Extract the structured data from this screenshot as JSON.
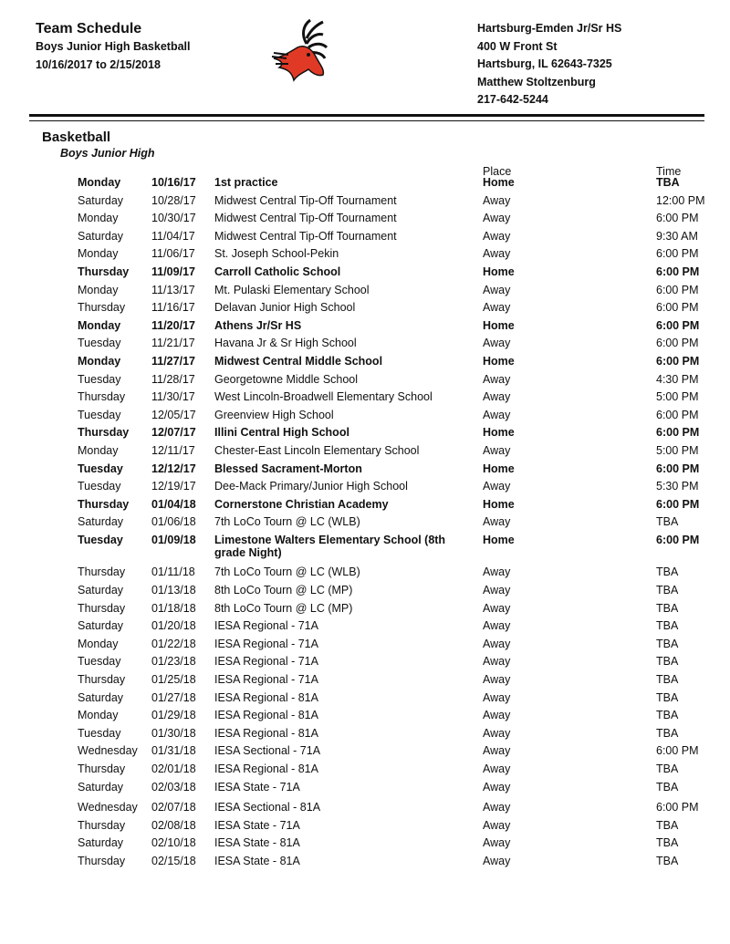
{
  "header": {
    "title": "Team Schedule",
    "subtitle": "Boys Junior High Basketball",
    "date_range": "10/16/2017 to 2/15/2018"
  },
  "school": {
    "name": "Hartsburg-Emden Jr/Sr HS",
    "address": "400 W Front St",
    "city": "Hartsburg, IL 62643-7325",
    "contact": "Matthew Stoltzenburg",
    "phone": "217-642-5244"
  },
  "logo": {
    "icon": "deer-head-mascot",
    "colors": [
      "#e03a26",
      "#111111"
    ]
  },
  "sport": "Basketball",
  "level": "Boys Junior High",
  "columns": {
    "place": "Place",
    "time": "Time"
  },
  "games": [
    {
      "day": "Monday",
      "date": "10/16/17",
      "opponent": "1st practice",
      "place": "Home",
      "time": "TBA",
      "home": true
    },
    {
      "day": "Saturday",
      "date": "10/28/17",
      "opponent": "Midwest Central Tip-Off Tournament",
      "place": "Away",
      "time": "12:00 PM"
    },
    {
      "day": "Monday",
      "date": "10/30/17",
      "opponent": "Midwest Central Tip-Off Tournament",
      "place": "Away",
      "time": "6:00 PM"
    },
    {
      "day": "Saturday",
      "date": "11/04/17",
      "opponent": "Midwest Central Tip-Off Tournament",
      "place": "Away",
      "time": "9:30 AM"
    },
    {
      "day": "Monday",
      "date": "11/06/17",
      "opponent": "St. Joseph School-Pekin",
      "place": "Away",
      "time": "6:00 PM"
    },
    {
      "day": "Thursday",
      "date": "11/09/17",
      "opponent": "Carroll Catholic School",
      "place": "Home",
      "time": "6:00 PM",
      "home": true
    },
    {
      "day": "Monday",
      "date": "11/13/17",
      "opponent": "Mt. Pulaski Elementary School",
      "place": "Away",
      "time": "6:00 PM"
    },
    {
      "day": "Thursday",
      "date": "11/16/17",
      "opponent": "Delavan Junior High School",
      "place": "Away",
      "time": "6:00 PM"
    },
    {
      "day": "Monday",
      "date": "11/20/17",
      "opponent": "Athens Jr/Sr HS",
      "place": "Home",
      "time": "6:00 PM",
      "home": true
    },
    {
      "day": "Tuesday",
      "date": "11/21/17",
      "opponent": "Havana Jr & Sr High School",
      "place": "Away",
      "time": "6:00 PM"
    },
    {
      "day": "Monday",
      "date": "11/27/17",
      "opponent": "Midwest Central Middle School",
      "place": "Home",
      "time": "6:00 PM",
      "home": true
    },
    {
      "day": "Tuesday",
      "date": "11/28/17",
      "opponent": "Georgetowne Middle School",
      "place": "Away",
      "time": "4:30 PM"
    },
    {
      "day": "Thursday",
      "date": "11/30/17",
      "opponent": "West Lincoln-Broadwell Elementary School",
      "place": "Away",
      "time": "5:00 PM"
    },
    {
      "day": "Tuesday",
      "date": "12/05/17",
      "opponent": "Greenview High School",
      "place": "Away",
      "time": "6:00 PM"
    },
    {
      "day": "Thursday",
      "date": "12/07/17",
      "opponent": "Illini Central High School",
      "place": "Home",
      "time": "6:00 PM",
      "home": true
    },
    {
      "day": "Monday",
      "date": "12/11/17",
      "opponent": "Chester-East Lincoln Elementary School",
      "place": "Away",
      "time": "5:00 PM"
    },
    {
      "day": "Tuesday",
      "date": "12/12/17",
      "opponent": "Blessed Sacrament-Morton",
      "place": "Home",
      "time": "6:00 PM",
      "home": true
    },
    {
      "day": "Tuesday",
      "date": "12/19/17",
      "opponent": "Dee-Mack Primary/Junior High School",
      "place": "Away",
      "time": "5:30 PM"
    },
    {
      "day": "Thursday",
      "date": "01/04/18",
      "opponent": "Cornerstone Christian Academy",
      "place": "Home",
      "time": "6:00 PM",
      "home": true
    },
    {
      "day": "Saturday",
      "date": "01/06/18",
      "opponent": "7th LoCo Tourn @ LC (WLB)",
      "place": "Away",
      "time": "TBA"
    },
    {
      "day": "Tuesday",
      "date": "01/09/18",
      "opponent": "Limestone Walters Elementary School (8th grade Night)",
      "place": "Home",
      "time": "6:00 PM",
      "home": true,
      "tall": true
    },
    {
      "day": "Thursday",
      "date": "01/11/18",
      "opponent": "7th LoCo Tourn @ LC (WLB)",
      "place": "Away",
      "time": "TBA"
    },
    {
      "day": "Saturday",
      "date": "01/13/18",
      "opponent": "8th LoCo Tourn @ LC (MP)",
      "place": "Away",
      "time": "TBA"
    },
    {
      "day": "Thursday",
      "date": "01/18/18",
      "opponent": "8th LoCo Tourn @ LC (MP)",
      "place": "Away",
      "time": "TBA"
    },
    {
      "day": "Saturday",
      "date": "01/20/18",
      "opponent": "IESA Regional - 71A",
      "place": "Away",
      "time": "TBA"
    },
    {
      "day": "Monday",
      "date": "01/22/18",
      "opponent": "IESA Regional - 71A",
      "place": "Away",
      "time": "TBA"
    },
    {
      "day": "Tuesday",
      "date": "01/23/18",
      "opponent": "IESA Regional - 71A",
      "place": "Away",
      "time": "TBA"
    },
    {
      "day": "Thursday",
      "date": "01/25/18",
      "opponent": "IESA Regional - 71A",
      "place": "Away",
      "time": "TBA"
    },
    {
      "day": "Saturday",
      "date": "01/27/18",
      "opponent": "IESA Regional - 81A",
      "place": "Away",
      "time": "TBA"
    },
    {
      "day": "Monday",
      "date": "01/29/18",
      "opponent": "IESA Regional - 81A",
      "place": "Away",
      "time": "TBA"
    },
    {
      "day": "Tuesday",
      "date": "01/30/18",
      "opponent": "IESA Regional - 81A",
      "place": "Away",
      "time": "TBA"
    },
    {
      "day": "Wednesday",
      "date": "01/31/18",
      "opponent": "IESA Sectional - 71A",
      "place": "Away",
      "time": "6:00 PM"
    },
    {
      "day": "Thursday",
      "date": "02/01/18",
      "opponent": "IESA Regional - 81A",
      "place": "Away",
      "time": "TBA"
    },
    {
      "day": "Saturday",
      "date": "02/03/18",
      "opponent": "IESA State - 71A",
      "place": "Away",
      "time": "TBA"
    },
    {
      "day": "Wednesday",
      "date": "02/07/18",
      "opponent": "IESA Sectional - 81A",
      "place": "Away",
      "time": "6:00 PM",
      "gap": true
    },
    {
      "day": "Thursday",
      "date": "02/08/18",
      "opponent": "IESA State - 71A",
      "place": "Away",
      "time": "TBA"
    },
    {
      "day": "Saturday",
      "date": "02/10/18",
      "opponent": "IESA State - 81A",
      "place": "Away",
      "time": "TBA"
    },
    {
      "day": "Thursday",
      "date": "02/15/18",
      "opponent": "IESA State - 81A",
      "place": "Away",
      "time": "TBA"
    }
  ]
}
